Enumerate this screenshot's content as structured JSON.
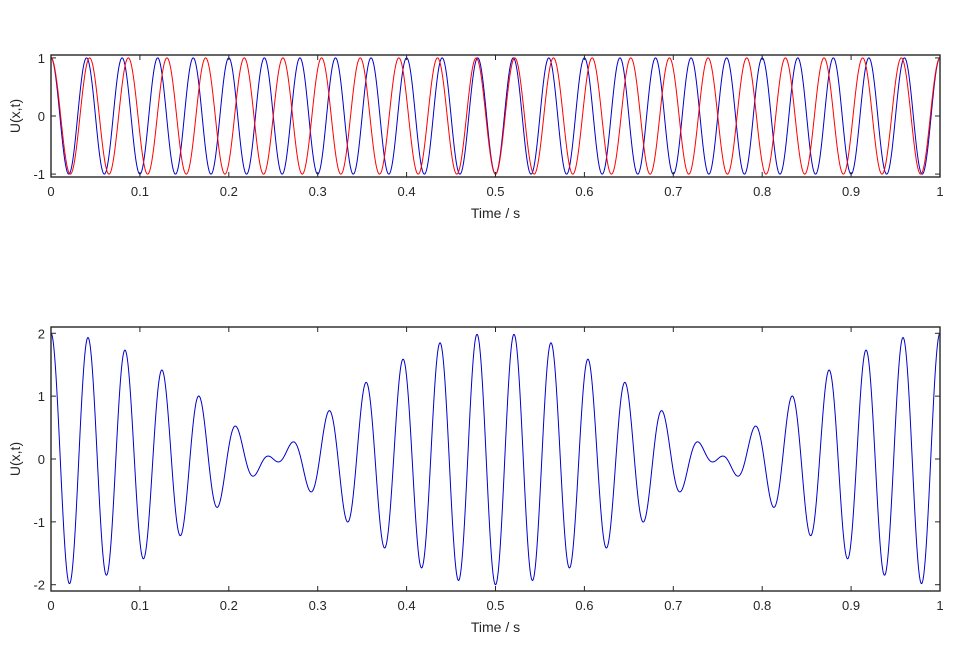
{
  "chart_data": [
    {
      "type": "line",
      "xlabel": "Time / s",
      "ylabel": "U(x,t)",
      "xlim": [
        0,
        1
      ],
      "ylim": [
        -1.05,
        1.05
      ],
      "xticks": [
        "0",
        "0.1",
        "0.2",
        "0.3",
        "0.4",
        "0.5",
        "0.6",
        "0.7",
        "0.8",
        "0.9",
        "1"
      ],
      "yticks": [
        "1",
        "0",
        "-1"
      ],
      "grid": false,
      "series": [
        {
          "color": "#0000cc",
          "expression": "cos(2*pi*25*t)",
          "frequency_hz": 25,
          "amplitude": 1
        },
        {
          "color": "#ff0000",
          "expression": "cos(2*pi*23*t)",
          "frequency_hz": 23,
          "amplitude": 1
        }
      ]
    },
    {
      "type": "line",
      "xlabel": "Time / s",
      "ylabel": "U(x,t)",
      "xlim": [
        0,
        1
      ],
      "ylim": [
        -2.1,
        2.1
      ],
      "xticks": [
        "0",
        "0.1",
        "0.2",
        "0.3",
        "0.4",
        "0.5",
        "0.6",
        "0.7",
        "0.8",
        "0.9",
        "1"
      ],
      "yticks": [
        "2",
        "1",
        "0",
        "-1",
        "-2"
      ],
      "grid": false,
      "series": [
        {
          "color": "#0000cc",
          "expression": "cos(2*pi*25*t) + cos(2*pi*23*t)",
          "components_hz": [
            25,
            23
          ]
        }
      ]
    }
  ]
}
